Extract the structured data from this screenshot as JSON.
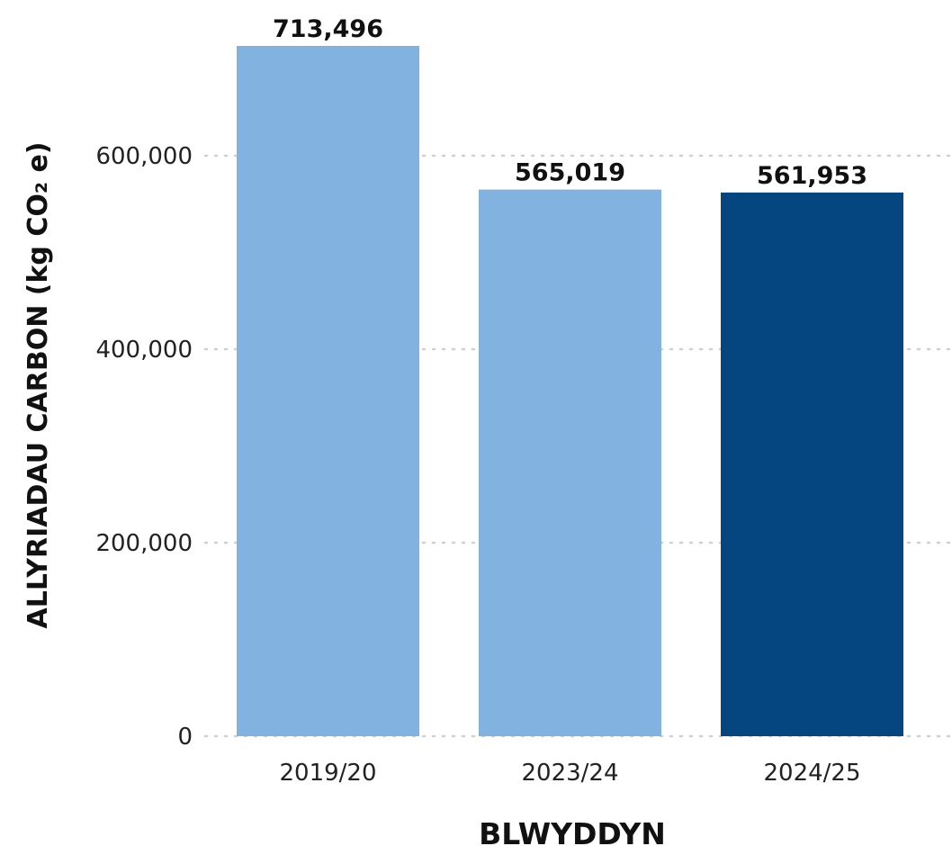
{
  "chart_data": {
    "type": "bar",
    "categories": [
      "2019/20",
      "2023/24",
      "2024/25"
    ],
    "values": [
      713496,
      565019,
      561953
    ],
    "value_labels": [
      "713,496",
      "565,019",
      "561,953"
    ],
    "bar_colors": [
      "#82b3e0",
      "#82b3e0",
      "#064680"
    ],
    "ylabel": "ALLYRIADAU CARBON (kg CO₂ e)",
    "xlabel": "BLWYDDYN",
    "ylim": [
      0,
      750000
    ],
    "yticks": [
      0,
      200000,
      400000,
      600000
    ],
    "ytick_labels": [
      "0",
      "200,000",
      "400,000",
      "600,000"
    ],
    "grid": "horizontal dotted",
    "gridline_color": "#d0d0d0",
    "label_color": "#111111"
  }
}
